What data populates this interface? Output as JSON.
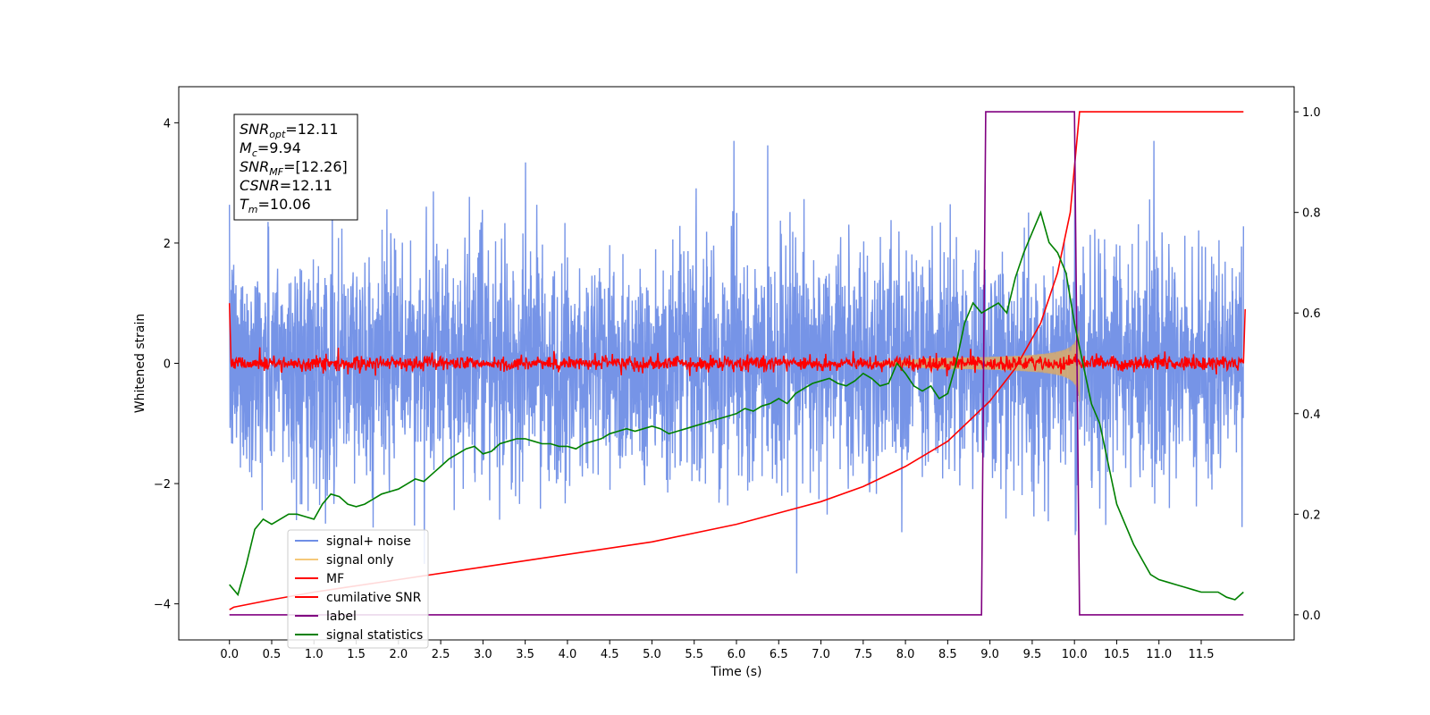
{
  "chart_data": {
    "type": "line",
    "xlabel": "Time (s)",
    "ylabel": "Whitened strain",
    "xlim": [
      -0.6,
      12.6
    ],
    "ylim": [
      -4.6,
      4.6
    ],
    "y2lim": [
      -0.05,
      1.05
    ],
    "xticks": [
      "0.0",
      "0.5",
      "1.0",
      "1.5",
      "2.0",
      "2.5",
      "3.0",
      "3.5",
      "4.0",
      "4.5",
      "5.0",
      "5.5",
      "6.0",
      "6.5",
      "7.0",
      "7.5",
      "8.0",
      "8.5",
      "9.0",
      "9.5",
      "10.0",
      "10.5",
      "11.0",
      "11.5"
    ],
    "yticks_left": [
      "4",
      "2",
      "0",
      "−2",
      "−4"
    ],
    "yticks_right": [
      "1.0",
      "0.8",
      "0.6",
      "0.4",
      "0.2",
      "0.0"
    ],
    "grid": false,
    "legend_position": "lower-left",
    "annotation": {
      "lines": [
        {
          "italic": "SNR",
          "sub": "opt",
          "value": "=12.11"
        },
        {
          "italic": "M",
          "sub": "c",
          "value": "=9.94"
        },
        {
          "italic": "SNR",
          "sub": "MF",
          "value": "=[12.26]"
        },
        {
          "italic": "CSNR",
          "sub": "",
          "value": "=12.11"
        },
        {
          "italic": "T",
          "sub": "m",
          "value": "=10.06"
        }
      ]
    },
    "series": [
      {
        "name": "signal+ noise",
        "color": "#6f8ee6",
        "axis": "left",
        "style": "dense noise band, amplitude about ±2.3 with spikes to ±3.7, x from 0 to 12"
      },
      {
        "name": "signal only",
        "color": "#f5c87a",
        "axis": "left",
        "style": "chirp whose envelope grows from 0 at x≈7.5 to about ±0.9 at x≈10.06, then ends"
      },
      {
        "name": "MF",
        "color": "#ff0000",
        "axis": "left",
        "x": [
          0.0,
          0.02,
          0.05,
          12.0,
          12.02
        ],
        "values": [
          1.0,
          0.0,
          0.0,
          0.0,
          0.9
        ],
        "style": "noisy trace around 0, amplitude about ±0.15"
      },
      {
        "name": "cumilative SNR",
        "color": "#ff0000",
        "axis": "right",
        "x": [
          0.0,
          0.05,
          0.5,
          1.0,
          2.0,
          3.0,
          4.0,
          5.0,
          6.0,
          7.0,
          7.5,
          8.0,
          8.5,
          9.0,
          9.3,
          9.6,
          9.8,
          9.95,
          10.06,
          10.2,
          11.0,
          12.0
        ],
        "values": [
          0.01,
          0.015,
          0.03,
          0.045,
          0.07,
          0.095,
          0.12,
          0.145,
          0.18,
          0.225,
          0.255,
          0.295,
          0.345,
          0.425,
          0.49,
          0.58,
          0.68,
          0.8,
          1.0,
          1.0,
          1.0,
          1.0
        ]
      },
      {
        "name": "label",
        "color": "#800080",
        "axis": "right",
        "x": [
          0.0,
          8.9,
          8.95,
          9.0,
          10.0,
          10.06,
          10.1,
          11.0,
          12.0
        ],
        "values": [
          0.0,
          0.0,
          1.0,
          1.0,
          1.0,
          0.0,
          0.0,
          0.0,
          0.0
        ]
      },
      {
        "name": "signal statistics",
        "color": "#008000",
        "axis": "right",
        "x": [
          0.0,
          0.1,
          0.2,
          0.3,
          0.4,
          0.5,
          0.6,
          0.7,
          0.8,
          0.9,
          1.0,
          1.1,
          1.2,
          1.3,
          1.4,
          1.5,
          1.6,
          1.7,
          1.8,
          1.9,
          2.0,
          2.1,
          2.2,
          2.3,
          2.4,
          2.5,
          2.6,
          2.7,
          2.8,
          2.9,
          3.0,
          3.1,
          3.2,
          3.3,
          3.4,
          3.5,
          3.6,
          3.7,
          3.8,
          3.9,
          4.0,
          4.1,
          4.2,
          4.3,
          4.4,
          4.5,
          4.6,
          4.7,
          4.8,
          4.9,
          5.0,
          5.1,
          5.2,
          5.3,
          5.4,
          5.5,
          5.6,
          5.7,
          5.8,
          5.9,
          6.0,
          6.1,
          6.2,
          6.3,
          6.4,
          6.5,
          6.6,
          6.7,
          6.8,
          6.9,
          7.0,
          7.1,
          7.2,
          7.3,
          7.4,
          7.5,
          7.6,
          7.7,
          7.8,
          7.9,
          8.0,
          8.1,
          8.2,
          8.3,
          8.4,
          8.5,
          8.6,
          8.7,
          8.8,
          8.9,
          9.0,
          9.1,
          9.2,
          9.3,
          9.4,
          9.5,
          9.6,
          9.7,
          9.8,
          9.9,
          10.0,
          10.1,
          10.2,
          10.3,
          10.4,
          10.5,
          10.6,
          10.7,
          10.8,
          10.9,
          11.0,
          11.1,
          11.2,
          11.3,
          11.4,
          11.5,
          11.6,
          11.7,
          11.8,
          11.9,
          12.0
        ],
        "values": [
          0.06,
          0.04,
          0.1,
          0.17,
          0.19,
          0.18,
          0.19,
          0.2,
          0.2,
          0.195,
          0.19,
          0.22,
          0.24,
          0.235,
          0.22,
          0.215,
          0.22,
          0.23,
          0.24,
          0.245,
          0.25,
          0.26,
          0.27,
          0.265,
          0.28,
          0.295,
          0.31,
          0.32,
          0.33,
          0.335,
          0.32,
          0.325,
          0.34,
          0.345,
          0.35,
          0.35,
          0.345,
          0.34,
          0.34,
          0.335,
          0.335,
          0.33,
          0.34,
          0.345,
          0.35,
          0.36,
          0.365,
          0.37,
          0.365,
          0.37,
          0.375,
          0.37,
          0.36,
          0.365,
          0.37,
          0.375,
          0.38,
          0.385,
          0.39,
          0.395,
          0.4,
          0.41,
          0.405,
          0.415,
          0.42,
          0.43,
          0.42,
          0.44,
          0.45,
          0.46,
          0.465,
          0.47,
          0.46,
          0.455,
          0.465,
          0.48,
          0.47,
          0.455,
          0.46,
          0.5,
          0.48,
          0.455,
          0.445,
          0.455,
          0.43,
          0.44,
          0.5,
          0.58,
          0.62,
          0.6,
          0.61,
          0.62,
          0.6,
          0.67,
          0.72,
          0.76,
          0.8,
          0.74,
          0.72,
          0.68,
          0.58,
          0.5,
          0.42,
          0.38,
          0.3,
          0.22,
          0.18,
          0.14,
          0.11,
          0.08,
          0.07,
          0.065,
          0.06,
          0.055,
          0.05,
          0.045,
          0.045,
          0.045,
          0.035,
          0.03,
          0.045
        ]
      }
    ]
  }
}
